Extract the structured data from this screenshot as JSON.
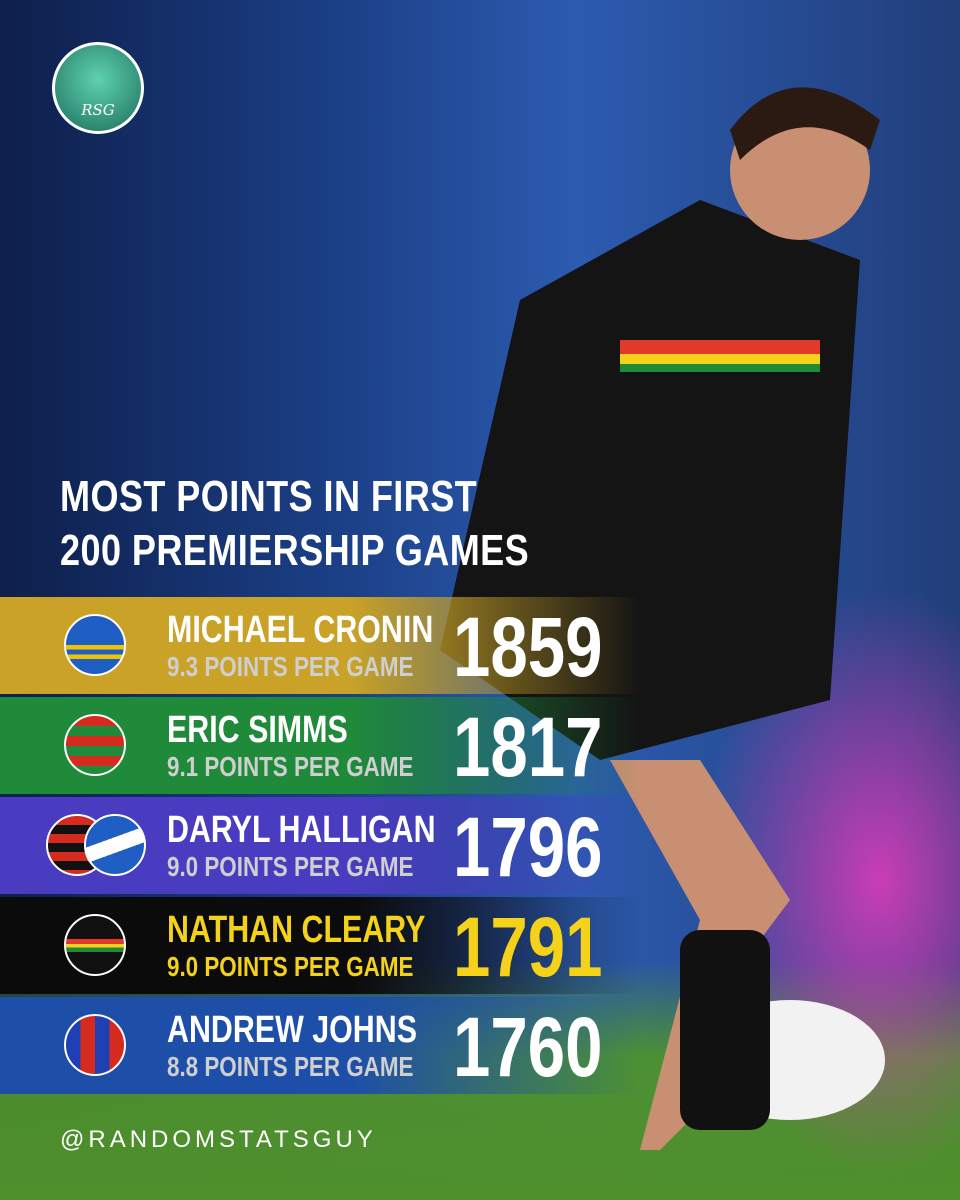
{
  "logo": "RSG",
  "title": [
    "MOST POINTS IN FIRST",
    "200 PREMIERSHIP GAMES"
  ],
  "rows": [
    {
      "name": "MICHAEL CRONIN",
      "rate": "9.3 POINTS PER GAME",
      "points": 1859
    },
    {
      "name": "ERIC SIMMS",
      "rate": "9.1 POINTS PER GAME",
      "points": 1817
    },
    {
      "name": "DARYL HALLIGAN",
      "rate": "9.0 POINTS PER GAME",
      "points": 1796
    },
    {
      "name": "NATHAN CLEARY",
      "rate": "9.0 POINTS PER GAME",
      "points": 1791
    },
    {
      "name": "ANDREW JOHNS",
      "rate": "8.8 POINTS PER GAME",
      "points": 1760
    }
  ],
  "handle": "@RANDOMSTATSGUY"
}
